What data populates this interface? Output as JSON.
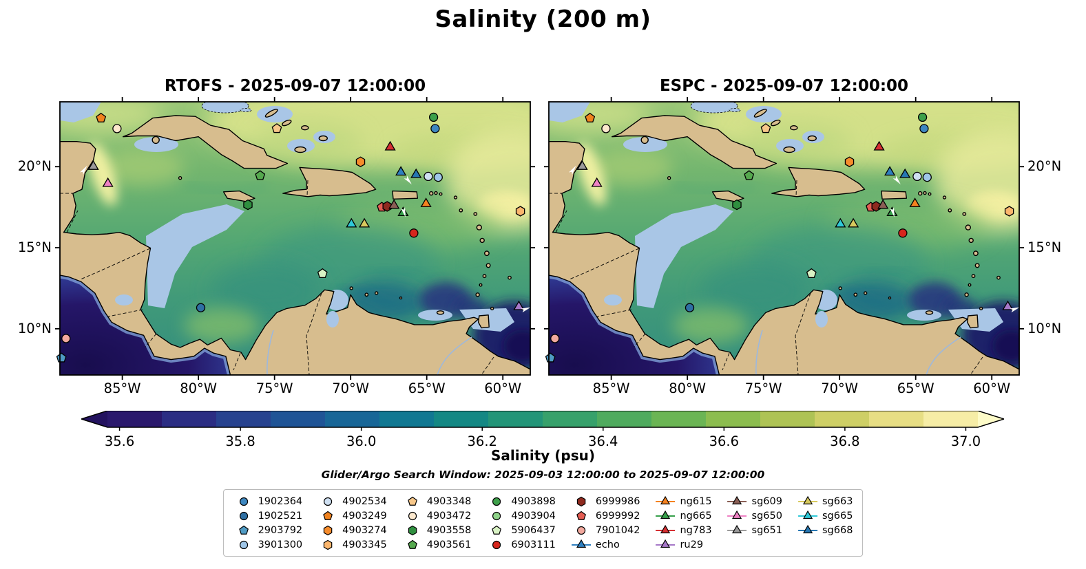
{
  "title": "Salinity (200 m)",
  "panels": [
    {
      "id": "rtofs",
      "title": "RTOFS - 2025-09-07 12:00:00",
      "y_label_side": "left"
    },
    {
      "id": "espc",
      "title": "ESPC - 2025-09-07 12:00:00",
      "y_label_side": "right"
    }
  ],
  "axes": {
    "x_ticks": [
      {
        "label": "85°W",
        "lon": -85
      },
      {
        "label": "80°W",
        "lon": -80
      },
      {
        "label": "75°W",
        "lon": -75
      },
      {
        "label": "70°W",
        "lon": -70
      },
      {
        "label": "65°W",
        "lon": -65
      },
      {
        "label": "60°W",
        "lon": -60
      }
    ],
    "y_ticks": [
      {
        "label": "20°N",
        "lat": 20
      },
      {
        "label": "15°N",
        "lat": 15
      },
      {
        "label": "10°N",
        "lat": 10
      }
    ]
  },
  "colorbar": {
    "label": "Salinity (psu)",
    "range": [
      35.58,
      37.02
    ],
    "ticks": [
      {
        "label": "35.6",
        "value": 35.6
      },
      {
        "label": "35.8",
        "value": 35.8
      },
      {
        "label": "36.0",
        "value": 36.0
      },
      {
        "label": "36.2",
        "value": 36.2
      },
      {
        "label": "36.4",
        "value": 36.4
      },
      {
        "label": "36.6",
        "value": 36.6
      },
      {
        "label": "36.8",
        "value": 36.8
      },
      {
        "label": "37.0",
        "value": 37.0
      }
    ],
    "segments": [
      "#2a186c",
      "#2b2d83",
      "#27428f",
      "#1f5496",
      "#186697",
      "#117892",
      "#148884",
      "#239578",
      "#37a16b",
      "#4fab5e",
      "#6bb554",
      "#8cbd4f",
      "#aec355",
      "#cecf66",
      "#e7de84",
      "#f6eda6"
    ],
    "extend_left": "#23125f",
    "extend_right": "#fdfbc8"
  },
  "subtitle": "Glider/Argo Search Window: 2025-09-03 12:00:00 to 2025-09-07 12:00:00",
  "legend": {
    "columns": [
      [
        {
          "label": "1902364",
          "marker": "circle",
          "color": "#3d87c0"
        },
        {
          "label": "1902521",
          "marker": "circle",
          "color": "#2e6fa3"
        },
        {
          "label": "2903792",
          "marker": "pentagon",
          "color": "#4f9bc4"
        },
        {
          "label": "3901300",
          "marker": "circle",
          "color": "#9fc6e8"
        }
      ],
      [
        {
          "label": "4902534",
          "marker": "circle",
          "color": "#cfe0f2"
        },
        {
          "label": "4903249",
          "marker": "pentagon",
          "color": "#f0821e"
        },
        {
          "label": "4903274",
          "marker": "hexagon",
          "color": "#f68c2c"
        },
        {
          "label": "4903345",
          "marker": "hexagon",
          "color": "#fbb66d"
        }
      ],
      [
        {
          "label": "4903348",
          "marker": "pentagon",
          "color": "#f7c789"
        },
        {
          "label": "4903472",
          "marker": "circle",
          "color": "#fde9ce"
        },
        {
          "label": "4903558",
          "marker": "hexagon",
          "color": "#2f8f3f"
        },
        {
          "label": "4903561",
          "marker": "pentagon",
          "color": "#55a84e"
        }
      ],
      [
        {
          "label": "4903898",
          "marker": "circle",
          "color": "#3da04a"
        },
        {
          "label": "4903904",
          "marker": "circle",
          "color": "#8fd389"
        },
        {
          "label": "5906437",
          "marker": "pentagon",
          "color": "#d8f2c4"
        },
        {
          "label": "6903111",
          "marker": "circle",
          "color": "#d7261d"
        }
      ],
      [
        {
          "label": "6999986",
          "marker": "hexagon",
          "color": "#8f2a1f"
        },
        {
          "label": "6999992",
          "marker": "pentagon",
          "color": "#e45d53"
        },
        {
          "label": "7901042",
          "marker": "circle",
          "color": "#f2a99e"
        },
        {
          "label": "echo",
          "marker": "triangle",
          "color": "#2f7fbf",
          "line": true
        }
      ],
      [
        {
          "label": "ng615",
          "marker": "triangle",
          "color": "#f58220",
          "line": true
        },
        {
          "label": "ng665",
          "marker": "triangle",
          "color": "#37a04b",
          "line": true
        },
        {
          "label": "ng783",
          "marker": "triangle",
          "color": "#d62f32",
          "line": true
        },
        {
          "label": "ru29",
          "marker": "triangle",
          "color": "#a678c8",
          "line": true
        }
      ],
      [
        {
          "label": "sg609",
          "marker": "triangle",
          "color": "#8a5f55",
          "line": true
        },
        {
          "label": "sg650",
          "marker": "triangle",
          "color": "#ef82c4",
          "line": true
        },
        {
          "label": "sg651",
          "marker": "triangle",
          "color": "#9b9b9b",
          "line": true
        }
      ],
      [
        {
          "label": "sg663",
          "marker": "triangle",
          "color": "#d8ca5e",
          "line": true
        },
        {
          "label": "sg665",
          "marker": "triangle",
          "color": "#2fc9d8",
          "line": true
        },
        {
          "label": "sg668",
          "marker": "triangle",
          "color": "#2677b3",
          "line": true
        }
      ]
    ]
  },
  "chart_data": {
    "type": "map-scatter",
    "variable": "Salinity (psu) at 200 m",
    "models": [
      "RTOFS",
      "ESPC"
    ],
    "valid_time": "2025-09-07 12:00:00",
    "lon_range": [
      -89.1,
      -58.2
    ],
    "lat_range": [
      7.15,
      24.0
    ],
    "colormap_range": [
      35.58,
      37.02
    ],
    "markers": [
      {
        "id": "4903249",
        "marker": "pentagon",
        "color": "#f0821e",
        "lon": -86.4,
        "lat": 23.0
      },
      {
        "id": "4903472",
        "marker": "circle",
        "color": "#fde9ce",
        "lon": -85.35,
        "lat": 22.35
      },
      {
        "id": "sg651",
        "marker": "triangle",
        "color": "#9b9b9b",
        "lon": -86.9,
        "lat": 20.0
      },
      {
        "id": "sg650",
        "marker": "triangle",
        "color": "#ef82c4",
        "lon": -85.95,
        "lat": 18.95
      },
      {
        "id": "4903348",
        "marker": "pentagon",
        "color": "#f7c789",
        "lon": -74.85,
        "lat": 22.35
      },
      {
        "id": "4903561",
        "marker": "pentagon",
        "color": "#55a84e",
        "lon": -75.95,
        "lat": 19.45
      },
      {
        "id": "4903558",
        "marker": "hexagon",
        "color": "#2f8f3f",
        "lon": -76.75,
        "lat": 17.65
      },
      {
        "id": "4903274",
        "marker": "hexagon",
        "color": "#f68c2c",
        "lon": -69.35,
        "lat": 20.3
      },
      {
        "id": "ng783",
        "marker": "triangle",
        "color": "#d62f32",
        "lon": -67.4,
        "lat": 21.2
      },
      {
        "id": "echo",
        "marker": "triangle",
        "color": "#2f7fbf",
        "lon": -66.7,
        "lat": 19.65
      },
      {
        "id": "sg668",
        "marker": "triangle",
        "color": "#2677b3",
        "lon": -65.7,
        "lat": 19.5
      },
      {
        "id": "4902534",
        "marker": "circle",
        "color": "#cfe0f2",
        "lon": -64.9,
        "lat": 19.4
      },
      {
        "id": "3901300",
        "marker": "circle",
        "color": "#9fc6e8",
        "lon": -64.25,
        "lat": 19.35
      },
      {
        "id": "4903898",
        "marker": "circle",
        "color": "#3da04a",
        "lon": -64.55,
        "lat": 23.05
      },
      {
        "id": "1902364",
        "marker": "circle",
        "color": "#3d87c0",
        "lon": -64.45,
        "lat": 22.35
      },
      {
        "id": "ng615",
        "marker": "triangle",
        "color": "#f58220",
        "lon": -65.05,
        "lat": 17.7
      },
      {
        "id": "6999992",
        "marker": "pentagon",
        "color": "#e45d53",
        "lon": -67.95,
        "lat": 17.5
      },
      {
        "id": "6999986",
        "marker": "hexagon",
        "color": "#8f2a1f",
        "lon": -67.6,
        "lat": 17.55
      },
      {
        "id": "sg609",
        "marker": "triangle",
        "color": "#8a5f55",
        "lon": -67.15,
        "lat": 17.6
      },
      {
        "id": "ng665",
        "marker": "triangle",
        "color": "#37a04b",
        "lon": -66.55,
        "lat": 17.15
      },
      {
        "id": "sg665",
        "marker": "triangle",
        "color": "#2fc9d8",
        "lon": -69.95,
        "lat": 16.45
      },
      {
        "id": "sg663",
        "marker": "triangle",
        "color": "#d8ca5e",
        "lon": -69.1,
        "lat": 16.45
      },
      {
        "id": "6903111",
        "marker": "circle",
        "color": "#d7261d",
        "lon": -65.85,
        "lat": 15.9
      },
      {
        "id": "5906437",
        "marker": "pentagon",
        "color": "#d8f2c4",
        "lon": -71.85,
        "lat": 13.4
      },
      {
        "id": "1902521",
        "marker": "circle",
        "color": "#2e6fa3",
        "lon": -79.85,
        "lat": 11.3
      },
      {
        "id": "ru29",
        "marker": "triangle",
        "color": "#a678c8",
        "lon": -58.95,
        "lat": 11.35
      },
      {
        "id": "4903345",
        "marker": "hexagon",
        "color": "#fbb66d",
        "lon": -58.85,
        "lat": 17.25
      },
      {
        "id": "7901042",
        "marker": "circle",
        "color": "#f2a99e",
        "lon": -88.7,
        "lat": 9.4
      },
      {
        "id": "2903792",
        "marker": "pentagon",
        "color": "#4f9bc4",
        "lon": -89.0,
        "lat": 8.2
      }
    ],
    "arrows": [
      {
        "lon": -87.55,
        "lat": 19.75,
        "angle": 35
      },
      {
        "lon": -66.25,
        "lat": 19.2,
        "angle": 140
      },
      {
        "lon": -66.5,
        "lat": 17.25,
        "angle": 165
      },
      {
        "lon": -58.55,
        "lat": 11.2,
        "angle": 70
      }
    ]
  }
}
